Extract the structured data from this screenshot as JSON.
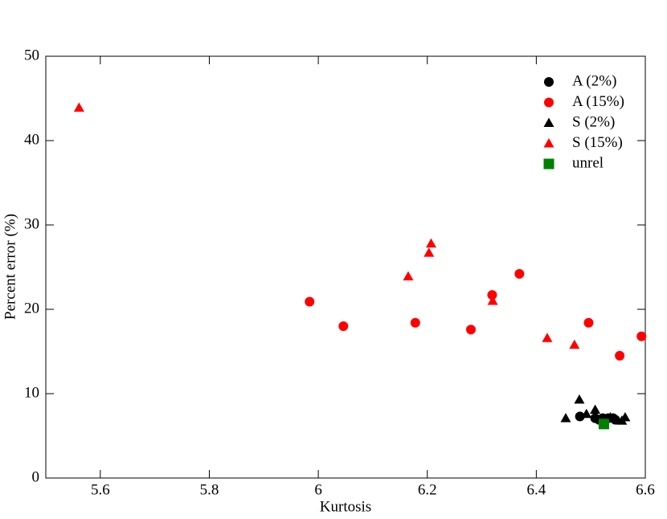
{
  "chart_data": {
    "type": "scatter",
    "xlabel": "Kurtosis",
    "ylabel": "Percent error (%)",
    "xlim": [
      5.5,
      6.6
    ],
    "xticks": [
      5.6,
      5.8,
      6,
      6.2,
      6.4,
      6.6
    ],
    "ylim": [
      0,
      50
    ],
    "yticks": [
      0,
      10,
      20,
      30,
      40,
      50
    ],
    "legend": "upper right",
    "series": [
      {
        "name": "A (2%)",
        "color": "#000000",
        "marker": "circle",
        "x": [
          6.48,
          6.508,
          6.515,
          6.522,
          6.532,
          6.541,
          6.545
        ],
        "values": [
          7.3,
          7.1,
          6.9,
          7.1,
          7.1,
          7.1,
          6.9
        ]
      },
      {
        "name": "A (15%)",
        "color": "#ff0000",
        "marker": "circle",
        "x": [
          5.984,
          6.046,
          6.178,
          6.28,
          6.319,
          6.369,
          6.496,
          6.553,
          6.593
        ],
        "values": [
          20.9,
          18.0,
          18.4,
          17.6,
          21.7,
          24.2,
          18.4,
          14.5,
          16.8
        ]
      },
      {
        "name": "S (2%)",
        "color": "#000000",
        "marker": "triangle",
        "x": [
          6.454,
          6.479,
          6.492,
          6.508,
          6.536,
          6.557,
          6.563
        ],
        "values": [
          7.1,
          9.3,
          7.6,
          8.1,
          7.2,
          6.8,
          7.2
        ]
      },
      {
        "name": "S (15%)",
        "color": "#ff0000",
        "marker": "triangle",
        "x": [
          5.561,
          6.165,
          6.203,
          6.207,
          6.32,
          6.42,
          6.47
        ],
        "values": [
          43.9,
          23.9,
          26.7,
          27.8,
          21.0,
          16.6,
          15.8
        ]
      },
      {
        "name": "unrel",
        "color": "#008000",
        "marker": "square",
        "x": [
          6.524
        ],
        "values": [
          6.4
        ]
      }
    ]
  }
}
